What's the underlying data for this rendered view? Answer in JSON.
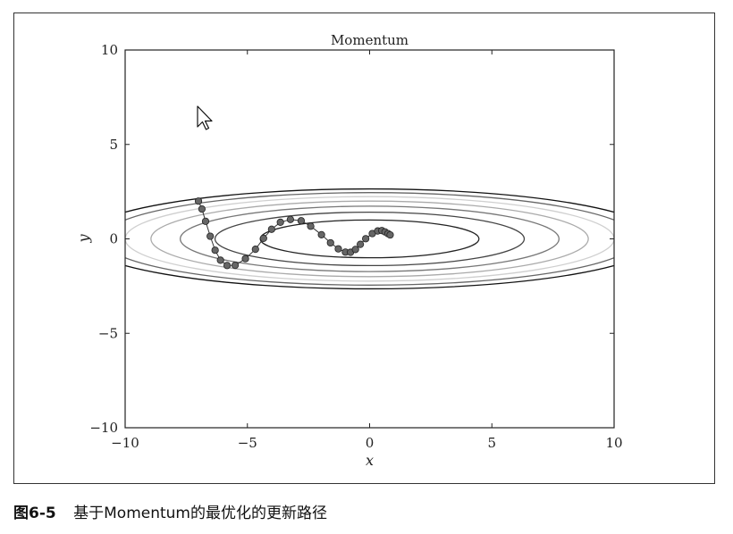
{
  "chart_data": {
    "type": "line",
    "title": "Momentum",
    "xlabel": "x",
    "ylabel": "y",
    "xlim": [
      -10,
      10
    ],
    "ylim": [
      -10,
      10
    ],
    "xticks": [
      -10,
      -5,
      0,
      5,
      10
    ],
    "yticks": [
      -10,
      -5,
      0,
      5,
      10
    ],
    "xtick_labels": [
      "−10",
      "−5",
      "0",
      "5",
      "10"
    ],
    "ytick_labels": [
      "−10",
      "−5",
      "0",
      "5",
      "10"
    ],
    "grid": false,
    "contours": {
      "function": "x^2/20 + y^2",
      "levels": [
        1,
        2,
        3,
        4,
        5,
        6,
        7
      ],
      "colors": [
        "#222222",
        "#444444",
        "#777777",
        "#aaaaaa",
        "#cfcfcf",
        "#666666",
        "#111111"
      ]
    },
    "series": [
      {
        "x": [
          -7.0,
          -6.86,
          -6.71,
          -6.52,
          -6.32,
          -6.1,
          -5.83,
          -5.5,
          -5.08,
          -4.67,
          -4.34,
          -4.01,
          -3.65,
          -3.24,
          -2.8,
          -2.41,
          -1.97,
          -1.6,
          -1.28,
          -0.99,
          -0.78,
          -0.58,
          -0.38,
          -0.16,
          0.11,
          0.33,
          0.5,
          0.63,
          0.75,
          0.84
        ],
        "y": [
          2.0,
          1.58,
          0.93,
          0.14,
          -0.6,
          -1.13,
          -1.41,
          -1.4,
          -1.05,
          -0.55,
          0.03,
          0.51,
          0.88,
          1.03,
          0.96,
          0.67,
          0.22,
          -0.21,
          -0.53,
          -0.7,
          -0.71,
          -0.56,
          -0.29,
          0.01,
          0.28,
          0.42,
          0.44,
          0.37,
          0.28,
          0.21
        ],
        "color": "#666666"
      }
    ]
  },
  "caption": {
    "figure_no": "图6-5",
    "text": "基于Momentum的最优化的更新路径"
  }
}
